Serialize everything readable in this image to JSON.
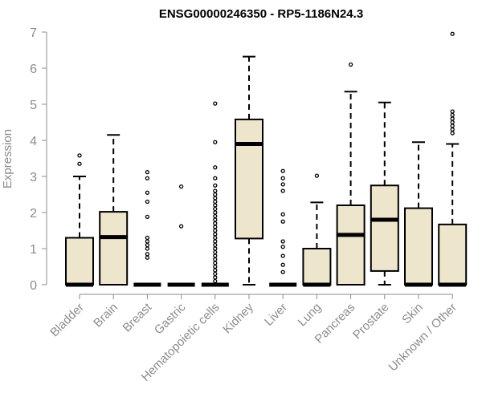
{
  "chart_data": {
    "type": "boxplot",
    "title": "ENSG00000246350 - RP5-1186N24.3",
    "xlabel": "",
    "ylabel": "Expression",
    "ylim": [
      0,
      7
    ],
    "yticks": [
      0,
      1,
      2,
      3,
      4,
      5,
      6,
      7
    ],
    "colors": {
      "box_fill": "#ede6cc",
      "stroke": "#000000",
      "axis": "#8c8c8c",
      "label": "#8c8c8c"
    },
    "categories": [
      "Bladder",
      "Brain",
      "Breast",
      "Gastric",
      "Hematopoietic cells",
      "Kidney",
      "Liver",
      "Lung",
      "Pancreas",
      "Prostate",
      "Skin",
      "Unknown / Other"
    ],
    "series": [
      {
        "name": "Bladder",
        "q1": 0,
        "median": 0,
        "q3": 1.3,
        "whisker_low": 0,
        "whisker_high": 3.0,
        "outliers": [
          3.35,
          3.58
        ]
      },
      {
        "name": "Brain",
        "q1": 0,
        "median": 1.32,
        "q3": 2.02,
        "whisker_low": 0,
        "whisker_high": 4.15,
        "outliers": []
      },
      {
        "name": "Breast",
        "q1": 0,
        "median": 0,
        "q3": 0,
        "whisker_low": 0,
        "whisker_high": 0,
        "outliers": [
          0.75,
          0.85,
          1.0,
          1.1,
          1.2,
          1.3,
          1.88,
          2.3,
          2.55,
          2.95,
          3.12
        ]
      },
      {
        "name": "Gastric",
        "q1": 0,
        "median": 0,
        "q3": 0,
        "whisker_low": 0,
        "whisker_high": 0,
        "outliers": [
          1.62,
          2.72
        ]
      },
      {
        "name": "Hematopoietic cells",
        "q1": 0,
        "median": 0,
        "q3": 0,
        "whisker_low": 0,
        "whisker_high": 0,
        "outliers": [
          0.1,
          0.2,
          0.3,
          0.4,
          0.5,
          0.6,
          0.7,
          0.8,
          0.9,
          1.0,
          1.1,
          1.2,
          1.3,
          1.4,
          1.5,
          1.6,
          1.7,
          1.8,
          1.9,
          2.0,
          2.1,
          2.2,
          2.3,
          2.4,
          2.5,
          2.6,
          2.75,
          2.95,
          3.25,
          3.95,
          5.02
        ]
      },
      {
        "name": "Kidney",
        "q1": 1.28,
        "median": 3.9,
        "q3": 4.58,
        "whisker_low": 0,
        "whisker_high": 6.32,
        "outliers": []
      },
      {
        "name": "Liver",
        "q1": 0,
        "median": 0,
        "q3": 0,
        "whisker_low": 0,
        "whisker_high": 0,
        "outliers": [
          0.35,
          0.55,
          0.8,
          1.05,
          1.2,
          1.75,
          1.95,
          2.6,
          2.78,
          2.95,
          3.15
        ]
      },
      {
        "name": "Lung",
        "q1": 0,
        "median": 0,
        "q3": 1.0,
        "whisker_low": 0,
        "whisker_high": 2.28,
        "outliers": [
          3.02
        ]
      },
      {
        "name": "Pancreas",
        "q1": 0,
        "median": 1.38,
        "q3": 2.2,
        "whisker_low": 0,
        "whisker_high": 5.35,
        "outliers": [
          6.1
        ]
      },
      {
        "name": "Prostate",
        "q1": 0.38,
        "median": 1.8,
        "q3": 2.75,
        "whisker_low": 0,
        "whisker_high": 5.05,
        "outliers": []
      },
      {
        "name": "Skin",
        "q1": 0,
        "median": 0,
        "q3": 2.12,
        "whisker_low": 0,
        "whisker_high": 3.95,
        "outliers": []
      },
      {
        "name": "Unknown / Other",
        "q1": 0,
        "median": 0,
        "q3": 1.67,
        "whisker_low": 0,
        "whisker_high": 3.9,
        "outliers": [
          4.2,
          4.3,
          4.4,
          4.5,
          4.6,
          4.7,
          4.8,
          6.95
        ]
      }
    ]
  }
}
